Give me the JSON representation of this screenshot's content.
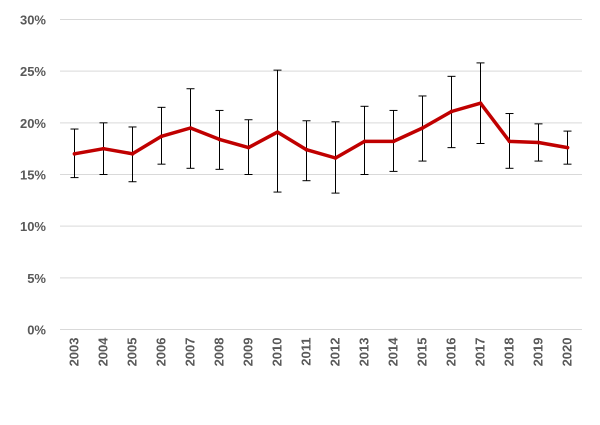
{
  "chart_data": {
    "type": "line",
    "title": "",
    "xlabel": "",
    "ylabel": "",
    "ylim": [
      0,
      30
    ],
    "y_ticks": [
      "0%",
      "5%",
      "10%",
      "15%",
      "20%",
      "25%",
      "30%"
    ],
    "y_tick_values": [
      0,
      5,
      10,
      15,
      20,
      25,
      30
    ],
    "grid": true,
    "legend": "none",
    "categories": [
      "2003",
      "2004",
      "2005",
      "2006",
      "2007",
      "2008",
      "2009",
      "2010",
      "2011",
      "2012",
      "2013",
      "2014",
      "2015",
      "2016",
      "2017",
      "2018",
      "2019",
      "2020"
    ],
    "series": [
      {
        "color": "#c00000",
        "values": [
          17.0,
          17.5,
          17.0,
          18.7,
          19.5,
          18.4,
          17.6,
          19.1,
          17.4,
          16.6,
          18.2,
          18.2,
          19.5,
          21.1,
          21.9,
          18.2,
          18.1,
          17.6
        ],
        "error_low": [
          14.7,
          15.0,
          14.3,
          16.0,
          15.6,
          15.5,
          15.0,
          13.3,
          14.4,
          13.2,
          15.0,
          15.3,
          16.3,
          17.6,
          18.0,
          15.6,
          16.3,
          16.0
        ],
        "error_high": [
          19.4,
          20.0,
          19.6,
          21.5,
          23.3,
          21.2,
          20.3,
          25.1,
          20.2,
          20.1,
          21.6,
          21.2,
          22.6,
          24.5,
          25.8,
          20.9,
          19.9,
          19.2
        ]
      }
    ],
    "colors": {
      "line": "#c00000",
      "error_bar": "#000000",
      "grid": "#d9d9d9",
      "tick_text": "#595959"
    }
  }
}
